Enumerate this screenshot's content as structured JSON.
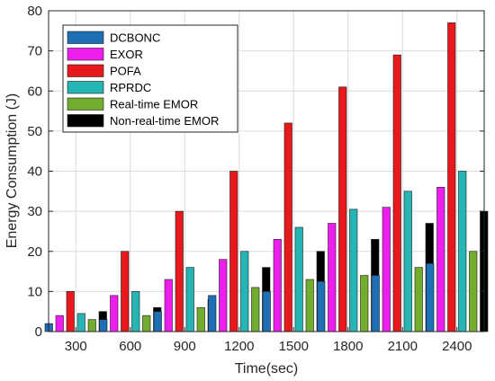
{
  "chart_data": {
    "type": "bar",
    "title": "",
    "xlabel": "Time(sec)",
    "ylabel": "Energy Consumption (J)",
    "ylim": [
      0,
      80
    ],
    "yticks": [
      0,
      10,
      20,
      30,
      40,
      50,
      60,
      70,
      80
    ],
    "grid": true,
    "legend_position": "top-left",
    "categories": [
      "300",
      "600",
      "900",
      "1200",
      "1500",
      "1800",
      "2100",
      "2400"
    ],
    "series": [
      {
        "name": "DCBONC",
        "color": "#1f6fb5",
        "values": [
          2,
          3,
          5,
          9,
          10,
          12.5,
          14,
          17
        ]
      },
      {
        "name": "EXOR",
        "color": "#ee1fee",
        "values": [
          4,
          9,
          13,
          18,
          23,
          27,
          31,
          36
        ]
      },
      {
        "name": "POFA",
        "color": "#e8191b",
        "values": [
          10,
          20,
          30,
          40,
          52,
          61,
          69,
          77
        ]
      },
      {
        "name": "RPRDC",
        "color": "#26b5b5",
        "values": [
          4.5,
          10,
          16,
          20,
          26,
          30.5,
          35,
          40
        ]
      },
      {
        "name": "Real-time EMOR",
        "color": "#72ad2d",
        "values": [
          3,
          4,
          6,
          11,
          13,
          14,
          16,
          20
        ]
      },
      {
        "name": "Non-real-time EMOR",
        "color": "#000000",
        "values": [
          5,
          6,
          8,
          16,
          20,
          23,
          27,
          30
        ]
      }
    ]
  }
}
